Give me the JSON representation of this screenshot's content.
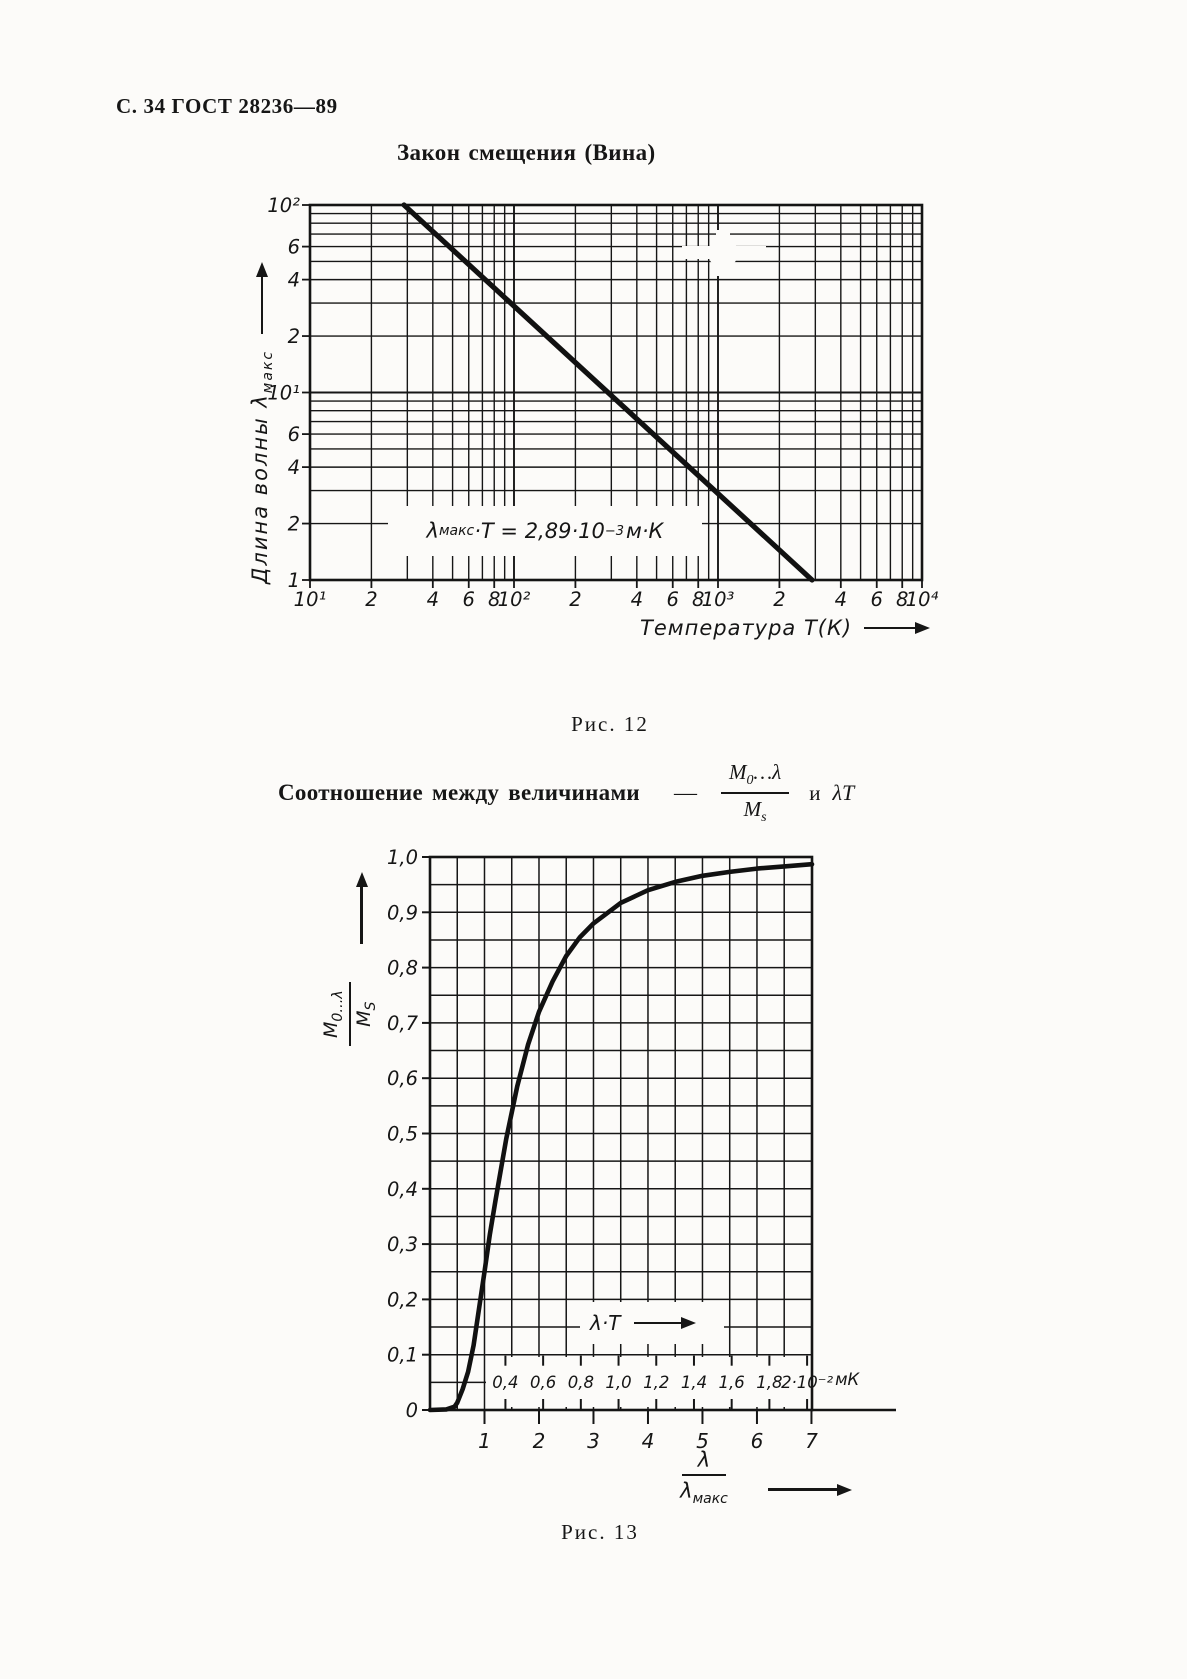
{
  "page": {
    "header": "С. 34 ГОСТ 28236—89"
  },
  "fig12": {
    "title": "Закон смещения (Вина)",
    "caption": "Рис. 12",
    "y_axis_label": {
      "text": "Длина волны λ",
      "sub": "макс"
    },
    "x_axis_label": "Температура Т(К)",
    "annotation_parts": {
      "lambda": "λ",
      "lambda_sub": "макс",
      "body": "·Т = 2,89·10",
      "exp": "−3",
      "unit": "м·К"
    }
  },
  "fig13": {
    "caption": "Рис. 13",
    "title": {
      "lead": "Соотношение между величинами",
      "dash": "—",
      "frac_num_base": "M",
      "frac_num_sub": "0",
      "frac_num_rest": "…λ",
      "frac_den_base": "M",
      "frac_den_sub": "s",
      "conj": "и",
      "tail": "λТ"
    },
    "y_axis_label": {
      "num_base": "M",
      "num_sub": "0…λ",
      "den_base": "M",
      "den_sub": "S"
    },
    "x_axis_label": {
      "num": "λ",
      "den_base": "λ",
      "den_sub": "макс"
    },
    "inner_annotation": "λ·Т",
    "secondary_unit": "мК"
  },
  "chart_data": [
    {
      "figure": "Рис. 12",
      "type": "line",
      "title": "Закон смещения (Вина)",
      "xlabel": "Температура Т(К)",
      "ylabel": "Длина волны λмакс",
      "x_scale": "log",
      "y_scale": "log",
      "xlim": [
        10,
        10000
      ],
      "ylim": [
        1,
        100
      ],
      "grid": "log minor lines 2–9 each decade",
      "x_ticks": [
        {
          "v": 10,
          "label": "10¹"
        },
        {
          "v": 20,
          "label": "2"
        },
        {
          "v": 40,
          "label": "4"
        },
        {
          "v": 60,
          "label": "6"
        },
        {
          "v": 80,
          "label": "8"
        },
        {
          "v": 100,
          "label": "10²"
        },
        {
          "v": 200,
          "label": "2"
        },
        {
          "v": 400,
          "label": "4"
        },
        {
          "v": 600,
          "label": "6"
        },
        {
          "v": 800,
          "label": "8"
        },
        {
          "v": 1000,
          "label": "10³"
        },
        {
          "v": 2000,
          "label": "2"
        },
        {
          "v": 4000,
          "label": "4"
        },
        {
          "v": 6000,
          "label": "6"
        },
        {
          "v": 8000,
          "label": "8"
        },
        {
          "v": 10000,
          "label": "10⁴"
        }
      ],
      "y_ticks": [
        {
          "v": 1,
          "label": "1"
        },
        {
          "v": 2,
          "label": "2"
        },
        {
          "v": 4,
          "label": "4"
        },
        {
          "v": 6,
          "label": "6"
        },
        {
          "v": 10,
          "label": "10¹"
        },
        {
          "v": 20,
          "label": "2"
        },
        {
          "v": 40,
          "label": "4"
        },
        {
          "v": 60,
          "label": "6"
        },
        {
          "v": 100,
          "label": "10²"
        }
      ],
      "annotation": "λмакс·Т = 2,89·10⁻³ м·К",
      "series": [
        {
          "name": "закон смещения Вина",
          "points": [
            [
              28.9,
              100
            ],
            [
              2890,
              1
            ]
          ]
        }
      ]
    },
    {
      "figure": "Рис. 13",
      "type": "line",
      "xlabel": "λ/λмакс",
      "ylabel": "M0…λ/MS",
      "xlim": [
        0,
        7.01
      ],
      "ylim": [
        0,
        1.0
      ],
      "x_grid_step": 0.5,
      "y_grid_step": 0.05,
      "x_ticks": [
        1,
        2,
        3,
        4,
        5,
        6,
        7
      ],
      "y_ticks": [
        {
          "v": 0,
          "label": "0"
        },
        {
          "v": 0.1,
          "label": "0,1"
        },
        {
          "v": 0.2,
          "label": "0,2"
        },
        {
          "v": 0.3,
          "label": "0,3"
        },
        {
          "v": 0.4,
          "label": "0,4"
        },
        {
          "v": 0.5,
          "label": "0,5"
        },
        {
          "v": 0.6,
          "label": "0,6"
        },
        {
          "v": 0.7,
          "label": "0,7"
        },
        {
          "v": 0.8,
          "label": "0,8"
        },
        {
          "v": 0.9,
          "label": "0,9"
        },
        {
          "v": 1.0,
          "label": "1,0"
        }
      ],
      "secondary_x_axis": {
        "label": "λ·Т",
        "unit": "мК",
        "ticks": [
          {
            "pos": 1.384,
            "label": "0,4"
          },
          {
            "pos": 2.076,
            "label": "0,6"
          },
          {
            "pos": 2.768,
            "label": "0,8"
          },
          {
            "pos": 3.46,
            "label": "1,0"
          },
          {
            "pos": 4.152,
            "label": "1,2"
          },
          {
            "pos": 4.844,
            "label": "1,4"
          },
          {
            "pos": 5.536,
            "label": "1,6"
          },
          {
            "pos": 6.228,
            "label": "1,8"
          },
          {
            "pos": 6.92,
            "label": "2·10⁻²"
          }
        ]
      },
      "series": [
        {
          "name": "M0…λ/MS",
          "points": [
            [
              0,
              0
            ],
            [
              0.3,
              0.001
            ],
            [
              0.45,
              0.006
            ],
            [
              0.5,
              0.013
            ],
            [
              0.6,
              0.038
            ],
            [
              0.7,
              0.069
            ],
            [
              0.8,
              0.117
            ],
            [
              0.9,
              0.183
            ],
            [
              1.0,
              0.25
            ],
            [
              1.1,
              0.318
            ],
            [
              1.2,
              0.378
            ],
            [
              1.4,
              0.491
            ],
            [
              1.6,
              0.585
            ],
            [
              1.8,
              0.661
            ],
            [
              2.0,
              0.72
            ],
            [
              2.25,
              0.775
            ],
            [
              2.5,
              0.821
            ],
            [
              2.75,
              0.855
            ],
            [
              3.0,
              0.88
            ],
            [
              3.5,
              0.917
            ],
            [
              4.0,
              0.94
            ],
            [
              4.5,
              0.955
            ],
            [
              5.0,
              0.966
            ],
            [
              5.5,
              0.973
            ],
            [
              6.0,
              0.979
            ],
            [
              6.5,
              0.983
            ],
            [
              7.01,
              0.987
            ]
          ]
        }
      ]
    }
  ]
}
